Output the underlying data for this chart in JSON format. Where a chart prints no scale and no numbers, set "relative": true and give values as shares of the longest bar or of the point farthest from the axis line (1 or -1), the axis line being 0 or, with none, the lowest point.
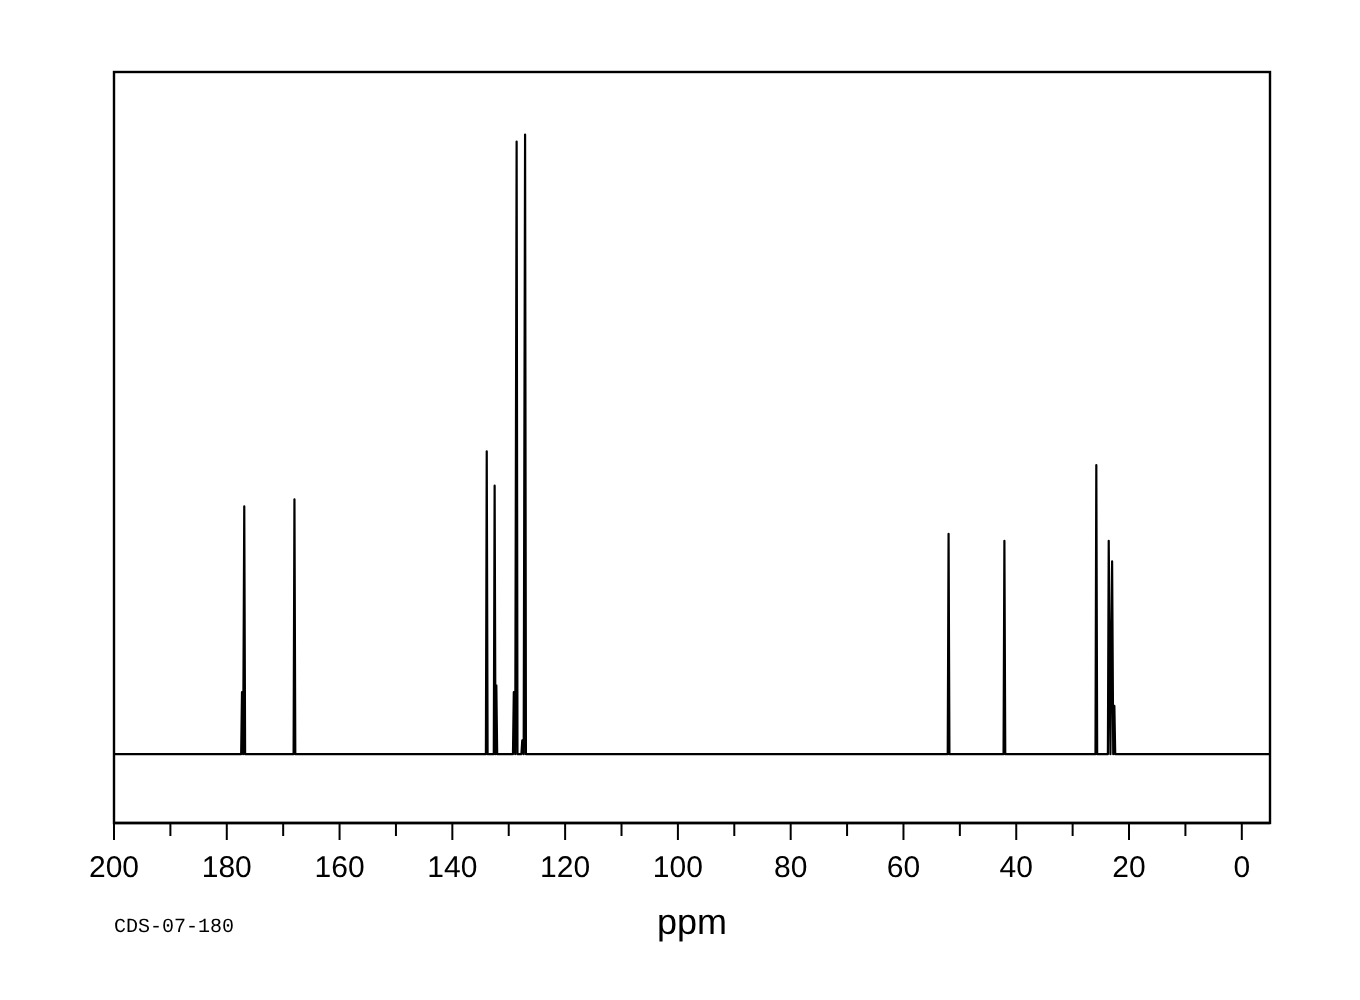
{
  "chart_data": {
    "type": "line",
    "relative": true,
    "xlabel": "ppm",
    "annotations": [
      "CDS-07-180"
    ],
    "xlim": [
      200,
      -5
    ],
    "xticks": [
      200,
      {
        "value": 190,
        "label": null
      },
      180,
      {
        "value": 170,
        "label": null
      },
      160,
      {
        "value": 150,
        "label": null
      },
      140,
      {
        "value": 130,
        "label": null
      },
      120,
      {
        "value": 110,
        "label": null
      },
      100,
      {
        "value": 90,
        "label": null
      },
      80,
      {
        "value": 70,
        "label": null
      },
      60,
      {
        "value": 50,
        "label": null
      },
      40,
      {
        "value": 30,
        "label": null
      },
      20,
      {
        "value": 10,
        "label": null
      },
      0
    ],
    "x": [
      200,
      177.45,
      177.3,
      177.1,
      176.9,
      176.75,
      168.15,
      168.0,
      167.85,
      134.05,
      133.9,
      133.75,
      132.65,
      132.5,
      132.35,
      132.2,
      132.05,
      129.25,
      129.1,
      128.85,
      128.6,
      128.45,
      127.75,
      127.6,
      127.35,
      127.1,
      126.95,
      52.15,
      52.0,
      51.85,
      42.25,
      42.1,
      41.95,
      25.95,
      25.8,
      25.65,
      23.75,
      23.6,
      23.3,
      23.0,
      22.8,
      22.6,
      22.45,
      -5
    ],
    "series": [
      {
        "color": "#000000",
        "values": [
          0.1,
          0.1,
          0.19,
          0.1,
          0.46,
          0.1,
          0.1,
          0.47,
          0.1,
          0.1,
          0.54,
          0.1,
          0.1,
          0.49,
          0.1,
          0.2,
          0.1,
          0.1,
          0.19,
          0.1,
          0.99,
          0.1,
          0.1,
          0.12,
          0.1,
          1,
          0.1,
          0.1,
          0.42,
          0.1,
          0.1,
          0.41,
          0.1,
          0.1,
          0.52,
          0.1,
          0.1,
          0.41,
          0.1,
          0.38,
          0.1,
          0.17,
          0.1,
          0.1
        ]
      }
    ]
  }
}
